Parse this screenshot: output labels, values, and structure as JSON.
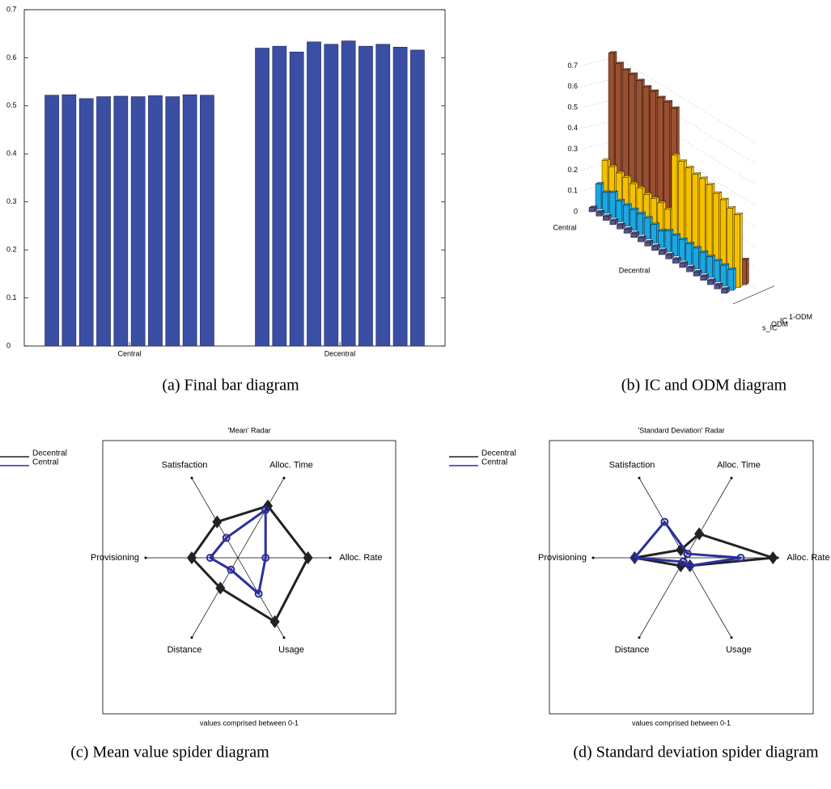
{
  "chart_data": [
    {
      "type": "bar",
      "categories": [
        "Central",
        "Decentral"
      ],
      "values": [
        [
          0.522,
          0.523,
          0.515,
          0.519,
          0.52,
          0.519,
          0.521,
          0.519,
          0.523,
          0.522
        ],
        [
          0.62,
          0.624,
          0.612,
          0.633,
          0.628,
          0.635,
          0.624,
          0.628,
          0.622,
          0.616
        ]
      ],
      "color": "#3a4fa3",
      "ylim": [
        0,
        0.7
      ],
      "yticks": [
        0,
        0.1,
        0.2,
        0.3,
        0.4,
        0.5,
        0.6,
        0.7
      ],
      "caption": "(a) Final bar diagram"
    },
    {
      "type": "bar3d",
      "categories": [
        "Central",
        "Decentral"
      ],
      "series": [
        {
          "name": "s_IC",
          "color": "#55558f",
          "values": [
            [
              0.02,
              0.02,
              0.02,
              0.02,
              0.02,
              0.02,
              0.02,
              0.02,
              0.02,
              0.02
            ],
            [
              0.02,
              0.02,
              0.02,
              0.02,
              0.02,
              0.02,
              0.02,
              0.02,
              0.02,
              0.02
            ]
          ]
        },
        {
          "name": "ODM",
          "color": "#1ea6e0",
          "values": [
            [
              0.12,
              0.1,
              0.12,
              0.1,
              0.1,
              0.1,
              0.1,
              0.1,
              0.09,
              0.08
            ],
            [
              0.1,
              0.1,
              0.1,
              0.1,
              0.1,
              0.1,
              0.1,
              0.1,
              0.1,
              0.1
            ]
          ]
        },
        {
          "name": "IC",
          "color": "#f5c000",
          "values": [
            [
              0.22,
              0.21,
              0.2,
              0.2,
              0.19,
              0.19,
              0.18,
              0.18,
              0.18,
              0.17
            ],
            [
              0.45,
              0.44,
              0.43,
              0.42,
              0.42,
              0.41,
              0.39,
              0.38,
              0.36,
              0.35
            ]
          ]
        },
        {
          "name": "1-ODM",
          "color": "#9a5030",
          "values": [
            [
              0.72,
              0.69,
              0.68,
              0.68,
              0.67,
              0.66,
              0.66,
              0.65,
              0.65,
              0.64
            ],
            [
              0.12,
              0.12,
              0.12,
              0.12,
              0.12,
              0.12,
              0.12,
              0.12,
              0.12,
              0.12
            ]
          ]
        }
      ],
      "zlim": [
        0,
        0.7
      ],
      "zticks": [
        0,
        0.1,
        0.2,
        0.3,
        0.4,
        0.5,
        0.6,
        0.7
      ],
      "caption": "(b) IC and ODM diagram"
    },
    {
      "type": "radar",
      "title": "'Mean' Radar",
      "xlabel": "values comprised between 0-1",
      "axes": [
        "Alloc. Rate",
        "Alloc. Time",
        "Satisfaction",
        "Provisioning",
        "Distance",
        "Usage"
      ],
      "rlim": [
        0,
        1
      ],
      "series": [
        {
          "name": "Decentral",
          "color": "#222222",
          "values": [
            0.76,
            0.65,
            0.45,
            0.5,
            0.38,
            0.8
          ]
        },
        {
          "name": "Central",
          "color": "#2b2f9b",
          "values": [
            0.3,
            0.6,
            0.25,
            0.3,
            0.15,
            0.45
          ]
        }
      ],
      "caption": "(c) Mean value spider diagram"
    },
    {
      "type": "radar",
      "title": "'Standard Deviation' Radar",
      "xlabel": "values comprised between 0-1",
      "axes": [
        "Alloc. Rate",
        "Alloc. Time",
        "Satisfaction",
        "Provisioning",
        "Distance",
        "Usage"
      ],
      "rlim": [
        0,
        1
      ],
      "series": [
        {
          "name": "Decentral",
          "color": "#222222",
          "values": [
            0.95,
            0.3,
            0.1,
            0.55,
            0.1,
            0.1
          ]
        },
        {
          "name": "Central",
          "color": "#2b2f9b",
          "values": [
            0.6,
            0.05,
            0.45,
            0.55,
            0.05,
            0.1
          ]
        }
      ],
      "caption": "(d) Standard deviation spider diagram"
    }
  ]
}
